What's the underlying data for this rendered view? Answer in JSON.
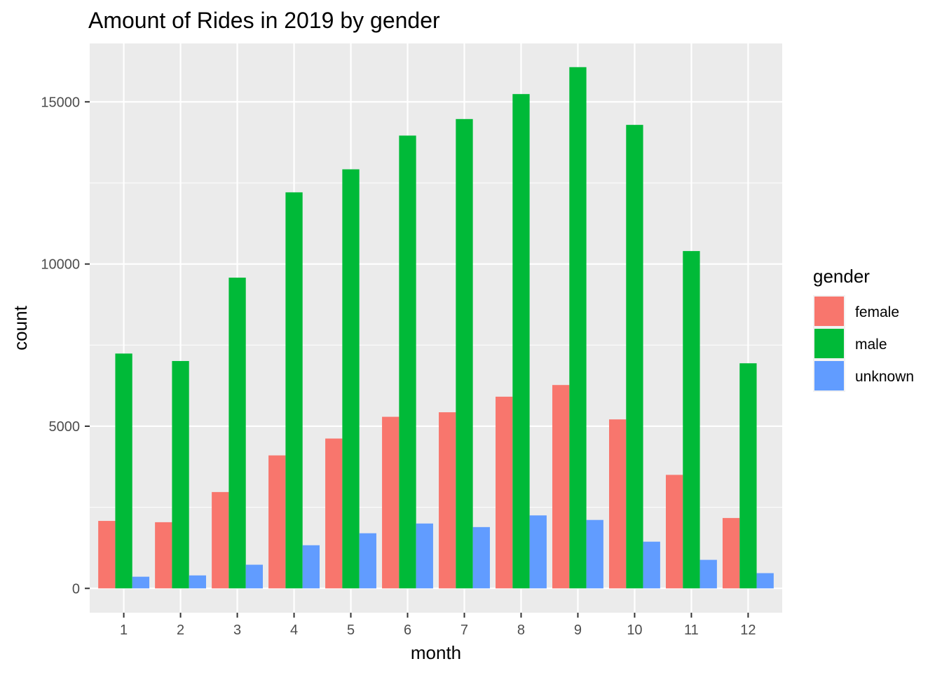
{
  "chart_data": {
    "type": "bar",
    "title": "Amount of Rides in 2019 by gender",
    "xlabel": "month",
    "ylabel": "count",
    "categories": [
      "1",
      "2",
      "3",
      "4",
      "5",
      "6",
      "7",
      "8",
      "9",
      "10",
      "11",
      "12"
    ],
    "y_ticks": [
      "0",
      "5000",
      "10000",
      "15000"
    ],
    "ylim": [
      -750,
      16800
    ],
    "grid": true,
    "legend": {
      "title": "gender",
      "position": "right"
    },
    "series": [
      {
        "name": "female",
        "color": "#F8766D",
        "values": [
          2080,
          2040,
          2970,
          4100,
          4620,
          5290,
          5430,
          5910,
          6270,
          5210,
          3500,
          2170
        ]
      },
      {
        "name": "male",
        "color": "#00BA38",
        "values": [
          7240,
          7010,
          9580,
          12210,
          12920,
          13960,
          14470,
          15240,
          16070,
          14290,
          10400,
          6940
        ]
      },
      {
        "name": "unknown",
        "color": "#619CFF",
        "values": [
          360,
          400,
          730,
          1330,
          1700,
          2000,
          1890,
          2250,
          2110,
          1440,
          880,
          470
        ]
      }
    ]
  }
}
